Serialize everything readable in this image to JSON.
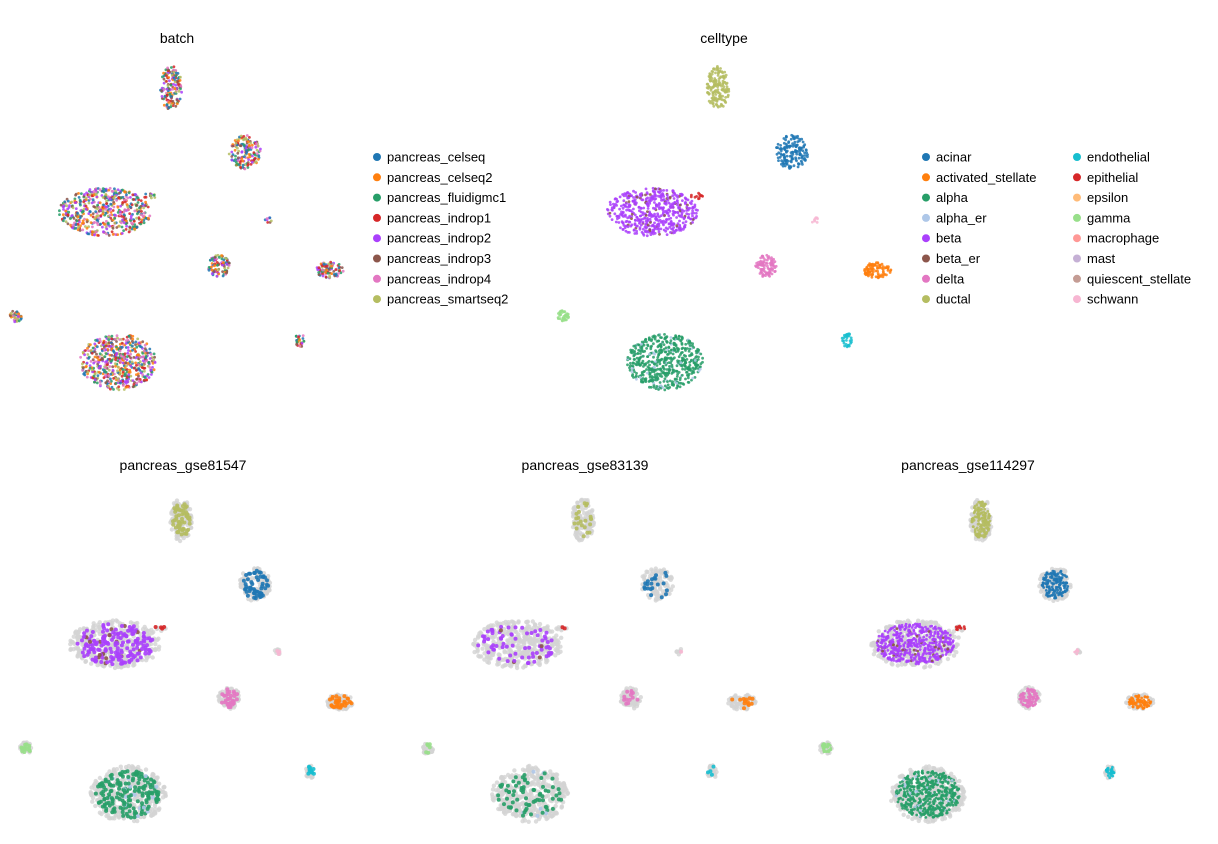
{
  "chart_data": [
    {
      "type": "scatter",
      "title": "batch",
      "color_by": "batch",
      "legend_placement": "right",
      "legend": [
        {
          "label": "pancreas_celseq",
          "color": "#1f77b4"
        },
        {
          "label": "pancreas_celseq2",
          "color": "#ff7f0e"
        },
        {
          "label": "pancreas_fluidigmc1",
          "color": "#279e68"
        },
        {
          "label": "pancreas_indrop1",
          "color": "#d62728"
        },
        {
          "label": "pancreas_indrop2",
          "color": "#aa40fc"
        },
        {
          "label": "pancreas_indrop3",
          "color": "#8c564b"
        },
        {
          "label": "pancreas_indrop4",
          "color": "#e377c2"
        },
        {
          "label": "pancreas_smartseq2",
          "color": "#b5bd61"
        }
      ]
    },
    {
      "type": "scatter",
      "title": "celltype",
      "color_by": "celltype",
      "legend_placement": "right",
      "legend": [
        {
          "label": "acinar",
          "color": "#1f77b4"
        },
        {
          "label": "activated_stellate",
          "color": "#ff7f0e"
        },
        {
          "label": "alpha",
          "color": "#279e68"
        },
        {
          "label": "alpha_er",
          "color": "#aec7e8"
        },
        {
          "label": "beta",
          "color": "#aa40fc"
        },
        {
          "label": "beta_er",
          "color": "#8c564b"
        },
        {
          "label": "delta",
          "color": "#e377c2"
        },
        {
          "label": "ductal",
          "color": "#b5bd61"
        },
        {
          "label": "endothelial",
          "color": "#17becf"
        },
        {
          "label": "epithelial",
          "color": "#d62728"
        },
        {
          "label": "epsilon",
          "color": "#ffbb78"
        },
        {
          "label": "gamma",
          "color": "#98df8a"
        },
        {
          "label": "macrophage",
          "color": "#ff9896"
        },
        {
          "label": "mast",
          "color": "#c5b0d5"
        },
        {
          "label": "quiescent_stellate",
          "color": "#c49c94"
        },
        {
          "label": "schwann",
          "color": "#f7b6d2"
        }
      ]
    },
    {
      "type": "scatter",
      "title": "pancreas_gse81547",
      "color_by": "celltype",
      "background_color": "#d3d3d3"
    },
    {
      "type": "scatter",
      "title": "pancreas_gse83139",
      "color_by": "celltype",
      "background_color": "#d3d3d3"
    },
    {
      "type": "scatter",
      "title": "pancreas_gse114297",
      "color_by": "celltype",
      "background_color": "#d3d3d3"
    }
  ]
}
